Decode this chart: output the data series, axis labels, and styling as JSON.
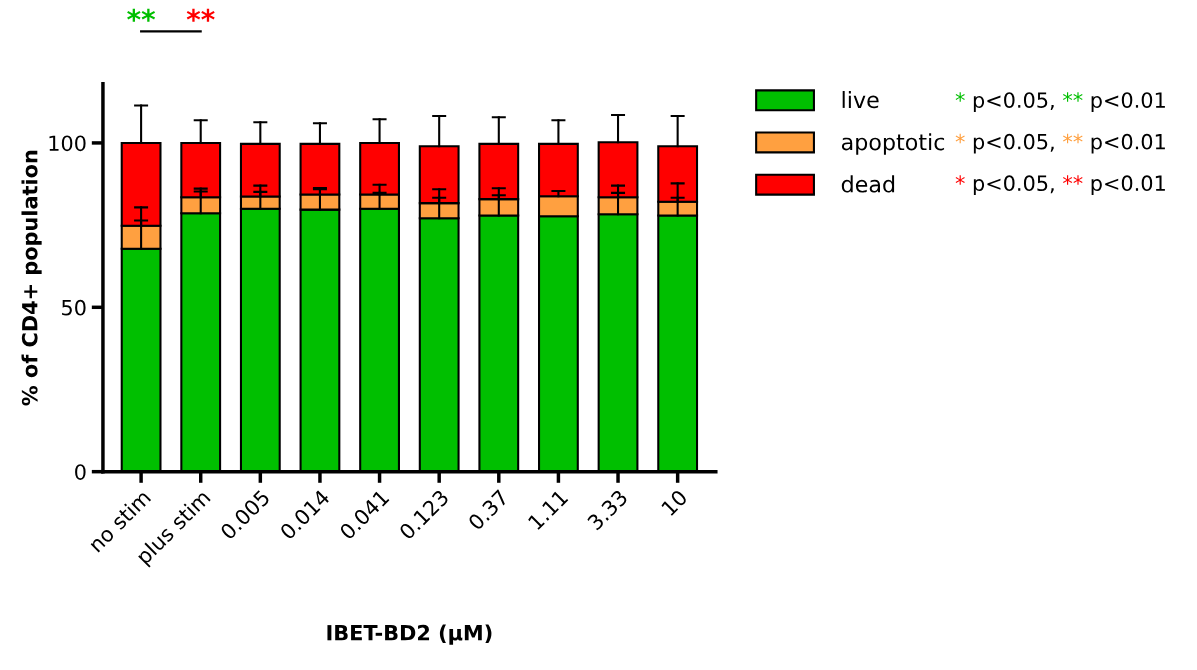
{
  "chart_data": {
    "type": "bar",
    "stacked": true,
    "xlabel": "IBET-BD2 (μM)",
    "ylabel": "% of CD4+ population",
    "categories": [
      "no stim",
      "plus stim",
      "0.005",
      "0.014",
      "0.041",
      "0.123",
      "0.37",
      "1.11",
      "3.33",
      "10"
    ],
    "series": [
      {
        "name": "live",
        "color": "#00bf00",
        "values": [
          67.8,
          78.6,
          80.0,
          79.7,
          80.0,
          77.1,
          77.9,
          77.7,
          78.3,
          77.9
        ],
        "errors": [
          [
            67.8,
            76.4
          ],
          [
            78.6,
            85.2
          ],
          [
            80.0,
            85.1
          ],
          [
            79.7,
            85.9
          ],
          [
            80.0,
            84.8
          ],
          [
            77.1,
            83.3
          ],
          [
            77.9,
            84.1
          ],
          null,
          [
            78.3,
            84.8
          ],
          [
            77.9,
            83.3
          ]
        ]
      },
      {
        "name": "apoptotic",
        "color": "#ffa040",
        "values": [
          7.0,
          4.9,
          3.7,
          4.6,
          4.3,
          4.6,
          5.0,
          6.1,
          5.2,
          4.2
        ],
        "errors": [
          [
            74.8,
            80.4
          ],
          [
            83.5,
            86.1
          ],
          [
            83.7,
            87.0
          ],
          [
            84.3,
            86.3
          ],
          [
            84.3,
            87.3
          ],
          [
            81.7,
            85.9
          ],
          [
            82.9,
            86.2
          ],
          [
            83.8,
            85.4
          ],
          [
            83.5,
            87.0
          ],
          [
            82.1,
            87.7
          ]
        ]
      },
      {
        "name": "dead",
        "color": "#ff0000",
        "values": [
          25.2,
          16.5,
          16.0,
          15.4,
          15.7,
          17.3,
          16.8,
          15.9,
          16.7,
          16.9
        ],
        "errors": [
          [
            100.0,
            111.4
          ],
          [
            100.0,
            106.9
          ],
          [
            99.7,
            106.3
          ],
          [
            99.7,
            106.0
          ],
          [
            100.0,
            107.2
          ],
          [
            99.0,
            108.2
          ],
          [
            99.7,
            107.8
          ],
          [
            99.7,
            106.9
          ],
          [
            100.2,
            108.5
          ],
          [
            99.0,
            108.2
          ]
        ]
      }
    ],
    "ylim": [
      0,
      118
    ],
    "yticks": [
      0,
      50,
      100
    ],
    "grid": false,
    "legend": "right",
    "annotations": [
      "**",
      "**",
      "* p<0.05, ** p<0.01",
      "* p<0.05, ** p<0.01",
      "* p<0.05, ** p<0.01"
    ]
  }
}
